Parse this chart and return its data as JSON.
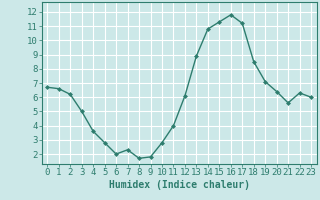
{
  "x": [
    0,
    1,
    2,
    3,
    4,
    5,
    6,
    7,
    8,
    9,
    10,
    11,
    12,
    13,
    14,
    15,
    16,
    17,
    18,
    19,
    20,
    21,
    22,
    23
  ],
  "y": [
    6.7,
    6.6,
    6.2,
    5.0,
    3.6,
    2.8,
    2.0,
    2.3,
    1.7,
    1.8,
    2.8,
    4.0,
    6.1,
    8.9,
    10.8,
    11.3,
    11.8,
    11.2,
    8.5,
    7.1,
    6.4,
    5.6,
    6.3,
    6.0
  ],
  "xlabel": "Humidex (Indice chaleur)",
  "xlim": [
    -0.5,
    23.5
  ],
  "ylim": [
    1.3,
    12.7
  ],
  "yticks": [
    2,
    3,
    4,
    5,
    6,
    7,
    8,
    9,
    10,
    11,
    12
  ],
  "xticks": [
    0,
    1,
    2,
    3,
    4,
    5,
    6,
    7,
    8,
    9,
    10,
    11,
    12,
    13,
    14,
    15,
    16,
    17,
    18,
    19,
    20,
    21,
    22,
    23
  ],
  "line_color": "#2e7d6e",
  "marker_color": "#2e7d6e",
  "bg_color": "#cce8e8",
  "grid_color": "#ffffff",
  "label_color": "#2e7d6e",
  "xlabel_fontsize": 7,
  "tick_fontsize": 6.5
}
